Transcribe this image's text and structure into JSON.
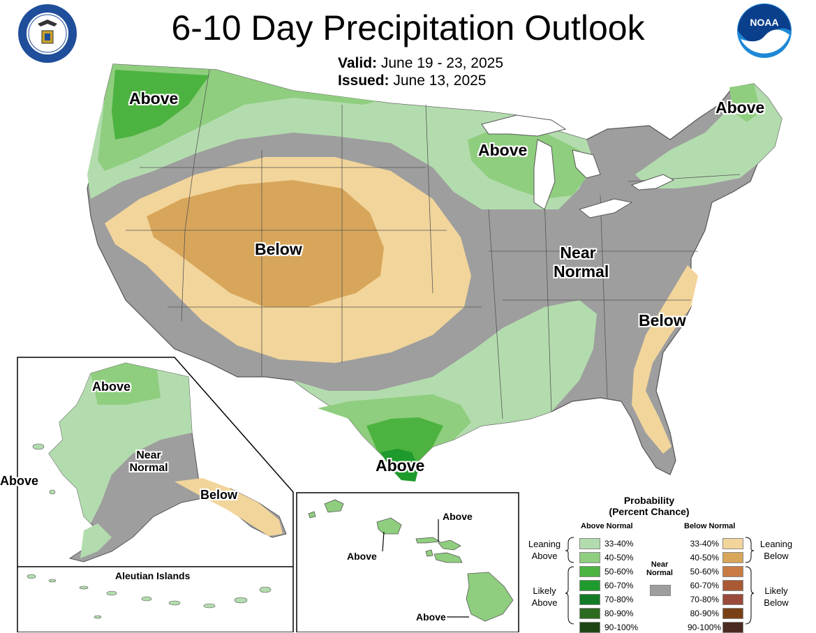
{
  "title": "6-10 Day Precipitation Outlook",
  "valid": {
    "label": "Valid:",
    "value": "June 19 - 23, 2025"
  },
  "issued": {
    "label": "Issued:",
    "value": "June 13, 2025"
  },
  "logos": {
    "left": "department-of-commerce-seal",
    "right": "noaa-logo",
    "noaa_text": "NOAA"
  },
  "map_labels": {
    "pacific_nw": "Above",
    "northeast": "Above",
    "great_lakes": "Above",
    "rockies": "Below",
    "midwest_near_normal_1": "Near",
    "midwest_near_normal_2": "Normal",
    "southeast": "Below",
    "texas": "Above"
  },
  "alaska": {
    "above_north": "Above",
    "near_1": "Near",
    "near_2": "Normal",
    "below": "Below",
    "above_west": "Above",
    "aleutian_title": "Aleutian Islands"
  },
  "hawaii": {
    "above_1": "Above",
    "above_2": "Above",
    "above_3": "Above"
  },
  "legend": {
    "title_1": "Probability",
    "title_2": "(Percent Chance)",
    "above_header": "Above Normal",
    "below_header": "Below Normal",
    "near_header_1": "Near",
    "near_header_2": "Normal",
    "leaning_above_1": "Leaning",
    "leaning_above_2": "Above",
    "likely_above_1": "Likely",
    "likely_above_2": "Above",
    "leaning_below_1": "Leaning",
    "leaning_below_2": "Below",
    "likely_below_1": "Likely",
    "likely_below_2": "Below",
    "ranges": [
      "33-40%",
      "40-50%",
      "50-60%",
      "60-70%",
      "70-80%",
      "80-90%",
      "90-100%"
    ],
    "above_colors": [
      "#b3dcae",
      "#8fce7f",
      "#4db340",
      "#1f9a2c",
      "#137a25",
      "#2c6a1f",
      "#1e4614"
    ],
    "below_colors": [
      "#f2d59b",
      "#d8a65a",
      "#c97b45",
      "#a95a34",
      "#9a4a3a",
      "#7a4015",
      "#4a2a22"
    ],
    "near_color": "#9e9e9e"
  }
}
